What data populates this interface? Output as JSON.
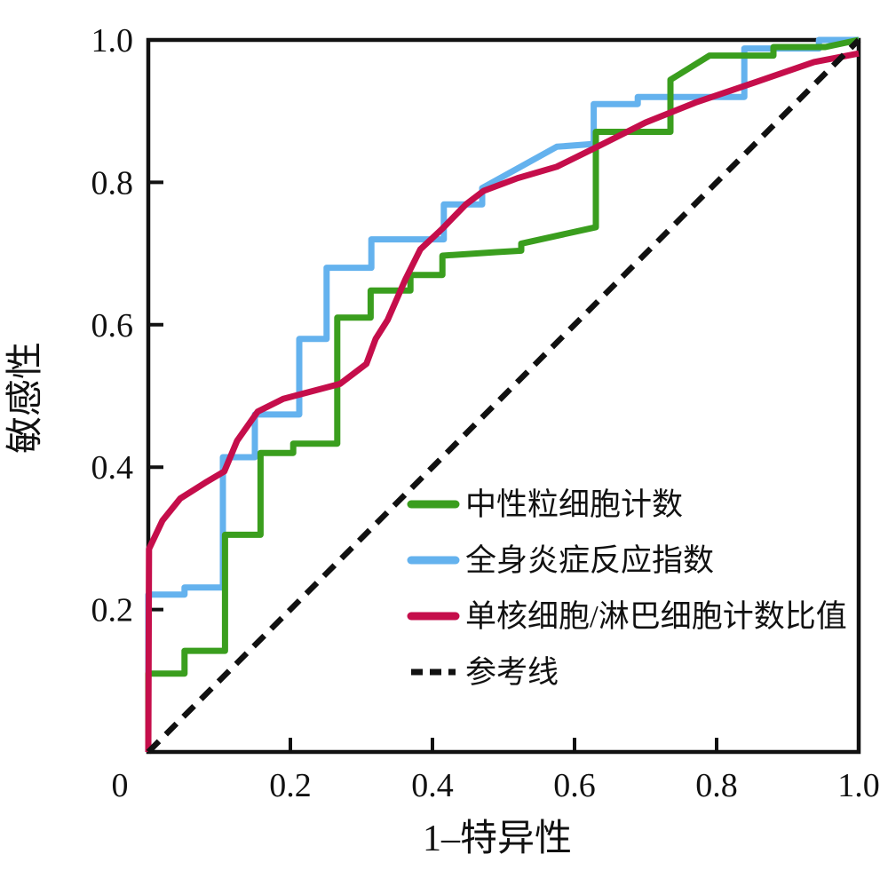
{
  "chart_data": {
    "type": "line",
    "subtype": "roc-curves",
    "title": "",
    "xlabel": "1–特异性",
    "ylabel": "敏感性",
    "xlim": [
      0,
      1
    ],
    "ylim": [
      0,
      1
    ],
    "grid": false,
    "legend_position": "inside-lower-right",
    "x_ticks": [
      {
        "value": 0,
        "label": "0"
      },
      {
        "value": 0.2,
        "label": "0.2"
      },
      {
        "value": 0.4,
        "label": "0.4"
      },
      {
        "value": 0.6,
        "label": "0.6"
      },
      {
        "value": 0.8,
        "label": "0.8"
      },
      {
        "value": 1.0,
        "label": "1.0"
      }
    ],
    "y_ticks": [
      {
        "value": 0.2,
        "label": "0.2"
      },
      {
        "value": 0.4,
        "label": "0.4"
      },
      {
        "value": 0.6,
        "label": "0.6"
      },
      {
        "value": 0.8,
        "label": "0.8"
      },
      {
        "value": 1.0,
        "label": "1.0"
      }
    ],
    "colors": {
      "axis": "#111111",
      "neutrophil_green": "#3a9e1e",
      "siri_blue": "#64b2ee",
      "mlr_red": "#c50e4b",
      "reference_black": "#111111"
    },
    "series": [
      {
        "name": "中性粒细胞计数",
        "color": "#3a9e1e",
        "dashed": false,
        "points": [
          [
            0,
            0
          ],
          [
            0,
            0.11
          ],
          [
            0.051,
            0.11
          ],
          [
            0.051,
            0.142
          ],
          [
            0.108,
            0.142
          ],
          [
            0.108,
            0.305
          ],
          [
            0.158,
            0.305
          ],
          [
            0.158,
            0.42
          ],
          [
            0.204,
            0.42
          ],
          [
            0.204,
            0.433
          ],
          [
            0.266,
            0.433
          ],
          [
            0.266,
            0.61
          ],
          [
            0.313,
            0.61
          ],
          [
            0.313,
            0.648
          ],
          [
            0.369,
            0.648
          ],
          [
            0.369,
            0.67
          ],
          [
            0.414,
            0.67
          ],
          [
            0.414,
            0.697
          ],
          [
            0.49,
            0.702
          ],
          [
            0.525,
            0.704
          ],
          [
            0.525,
            0.714
          ],
          [
            0.63,
            0.737
          ],
          [
            0.63,
            0.871
          ],
          [
            0.735,
            0.871
          ],
          [
            0.735,
            0.944
          ],
          [
            0.79,
            0.978
          ],
          [
            0.88,
            0.978
          ],
          [
            0.88,
            0.99
          ],
          [
            0.953,
            0.99
          ],
          [
            1,
            1
          ]
        ]
      },
      {
        "name": "全身炎症反应指数",
        "color": "#64b2ee",
        "dashed": false,
        "points": [
          [
            0,
            0
          ],
          [
            0,
            0.221
          ],
          [
            0.051,
            0.221
          ],
          [
            0.051,
            0.231
          ],
          [
            0.105,
            0.231
          ],
          [
            0.105,
            0.414
          ],
          [
            0.15,
            0.414
          ],
          [
            0.15,
            0.474
          ],
          [
            0.2125,
            0.474
          ],
          [
            0.2125,
            0.58
          ],
          [
            0.251,
            0.58
          ],
          [
            0.251,
            0.68
          ],
          [
            0.314,
            0.68
          ],
          [
            0.314,
            0.72
          ],
          [
            0.416,
            0.72
          ],
          [
            0.416,
            0.769
          ],
          [
            0.47,
            0.769
          ],
          [
            0.47,
            0.792
          ],
          [
            0.575,
            0.85
          ],
          [
            0.627,
            0.854
          ],
          [
            0.627,
            0.91
          ],
          [
            0.689,
            0.91
          ],
          [
            0.689,
            0.92
          ],
          [
            0.839,
            0.92
          ],
          [
            0.839,
            0.988
          ],
          [
            0.944,
            0.988
          ],
          [
            0.944,
            1
          ],
          [
            1,
            1
          ]
        ]
      },
      {
        "name": "单核细胞/淋巴细胞计数比值",
        "color": "#c50e4b",
        "dashed": false,
        "points": [
          [
            0,
            0
          ],
          [
            0.001,
            0.285
          ],
          [
            0.02,
            0.325
          ],
          [
            0.045,
            0.356
          ],
          [
            0.08,
            0.378
          ],
          [
            0.107,
            0.394
          ],
          [
            0.125,
            0.437
          ],
          [
            0.154,
            0.478
          ],
          [
            0.19,
            0.496
          ],
          [
            0.27,
            0.517
          ],
          [
            0.307,
            0.545
          ],
          [
            0.32,
            0.58
          ],
          [
            0.337,
            0.607
          ],
          [
            0.362,
            0.664
          ],
          [
            0.383,
            0.706
          ],
          [
            0.414,
            0.735
          ],
          [
            0.447,
            0.769
          ],
          [
            0.472,
            0.788
          ],
          [
            0.52,
            0.806
          ],
          [
            0.575,
            0.822
          ],
          [
            0.63,
            0.849
          ],
          [
            0.7,
            0.884
          ],
          [
            0.77,
            0.912
          ],
          [
            0.853,
            0.94
          ],
          [
            0.937,
            0.969
          ],
          [
            1,
            0.981
          ]
        ]
      },
      {
        "name": "参考线",
        "color": "#111111",
        "dashed": true,
        "points": [
          [
            0,
            0
          ],
          [
            1,
            1
          ]
        ]
      }
    ],
    "legend": [
      {
        "label": "中性粒细胞计数",
        "color": "#3a9e1e",
        "dashed": false
      },
      {
        "label": "全身炎症反应指数",
        "color": "#64b2ee",
        "dashed": false
      },
      {
        "label": "单核细胞/淋巴细胞计数比值",
        "color": "#c50e4b",
        "dashed": false
      },
      {
        "label": "参考线",
        "color": "#111111",
        "dashed": true
      }
    ]
  }
}
